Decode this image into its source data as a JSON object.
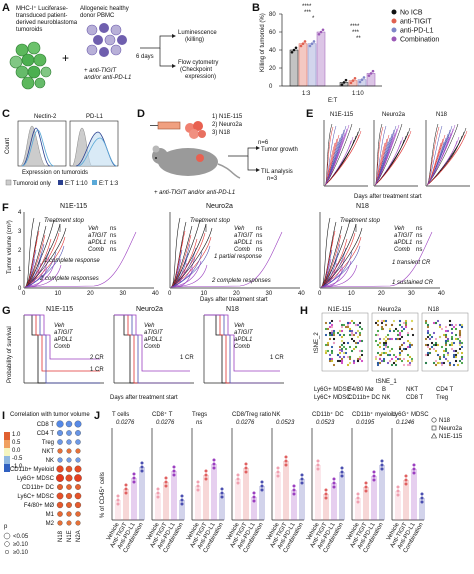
{
  "labels": [
    "A",
    "B",
    "C",
    "D",
    "E",
    "F",
    "G",
    "H",
    "I",
    "J"
  ],
  "panelA": {
    "left_text": "MHC-I+ Luciferase-transduced patient-derived neuroblastoma tumoroids",
    "left_lines": [
      "MHC-I⁺ Luciferase-",
      "transduced patient-",
      "derived neuroblastoma",
      "tumoroids"
    ],
    "right_lines": [
      "Allogeneic healthy",
      "donor PBMC"
    ],
    "treat_lines": [
      "+ anti-TIGIT",
      "and/or anti-PD-L1"
    ],
    "time": "6 days",
    "out1_lines": [
      "Luminescence",
      "(killing)"
    ],
    "out2_lines": [
      "Flow cytometry",
      "(Checkpoint",
      "expression)"
    ],
    "colors": {
      "green": "#5cb85c",
      "purple": "#6f5fae",
      "pbmc": "#b8b0d8"
    }
  },
  "panelB": {
    "ylabel": "Killing of tumoroid (%)",
    "xlabel": "E:T",
    "groups": [
      "1:3",
      "1:10"
    ],
    "legend": [
      "No ICB",
      "anti-TIGIT",
      "anti-PD-L1",
      "Combination"
    ],
    "legend_colors": [
      "#111111",
      "#e06050",
      "#7f86c8",
      "#9b59b6"
    ],
    "sig": [
      "****",
      "***",
      "*",
      "****",
      "***",
      "**"
    ],
    "chart_data": {
      "type": "bar",
      "categories": [
        "1:3",
        "1:10"
      ],
      "series": [
        {
          "name": "No ICB",
          "values": [
            40,
            4
          ]
        },
        {
          "name": "anti-TIGIT",
          "values": [
            47,
            6
          ]
        },
        {
          "name": "anti-PD-L1",
          "values": [
            47,
            7
          ]
        },
        {
          "name": "Combination",
          "values": [
            60,
            14
          ]
        }
      ],
      "ylim": [
        0,
        80
      ]
    }
  },
  "panelC": {
    "titles": [
      "Nectin-2",
      "PD-L1"
    ],
    "xlabel": "Expression on tumoroids",
    "ylabel": "Count",
    "legend": [
      "Tumoroid only",
      "E:T 1:10",
      "E:T 1:3"
    ],
    "legend_colors": [
      "#999999",
      "#2a3f8f",
      "#5aa9d8"
    ]
  },
  "panelD": {
    "lines": [
      "1) N1E-115",
      "2) Neuro2a",
      "3) N18"
    ],
    "n": "n=6",
    "out1": "Tumor growth",
    "out2_lines": [
      "TIL analysis",
      "n=3"
    ],
    "bottom": "+ anti-TIGIT and/or anti-PD-L1"
  },
  "panelE": {
    "titles": [
      "N1E-115",
      "Neuro2a",
      "N18"
    ],
    "xlabel": "Days after treatment start"
  },
  "panelF": {
    "titles": [
      "N1E-115",
      "Neuro2a",
      "N18"
    ],
    "ylabel": "Tumor volume (cm³)",
    "xlabel": "Days after treatment start",
    "stop": "Treatment stop",
    "legend": [
      "Veh",
      "aTIGIT",
      "aPDL1",
      "Comb"
    ],
    "legend_colors": [
      "#111111",
      "#e03030",
      "#4a4fb0",
      "#9b3fc0"
    ],
    "notes": [
      "1 complete response",
      "2 complete responses",
      "1 partial response",
      "2 complete responses",
      "1 transient CR",
      "1 sustained CR"
    ],
    "ns": "ns",
    "yticks": [
      "0",
      "1",
      "2",
      "3",
      "4"
    ],
    "xticks": [
      "0",
      "10",
      "20",
      "30",
      "40"
    ]
  },
  "panelG": {
    "titles": [
      "N1E-115",
      "Neuro2a",
      "N18"
    ],
    "ylabel": "Probability of survival",
    "xlabel": "Days after treatment start",
    "notes": [
      "2 CR",
      "1 CR",
      "1 CR",
      "1 CR"
    ],
    "legend": [
      "Veh",
      "aTIGIT",
      "aPDL1",
      "Comb"
    ]
  },
  "panelH": {
    "titles": [
      "N1E-115",
      "Neuro2a",
      "N18"
    ],
    "xlab": "tSNE_1",
    "ylab": "tSNE_2",
    "legend": [
      {
        "t": "Ly6G+ MDSC",
        "c": "#c8b820"
      },
      {
        "t": "F4/80 Mø",
        "c": "#f0a0c0"
      },
      {
        "t": "B",
        "c": "#a07020"
      },
      {
        "t": "NKT",
        "c": "#111111"
      },
      {
        "t": "CD4 T",
        "c": "#d040c0"
      },
      {
        "t": "Ly6C+ MDSC",
        "c": "#d8d860"
      },
      {
        "t": "CD11b+ DC",
        "c": "#40a040"
      },
      {
        "t": "NK",
        "c": "#2050a0"
      },
      {
        "t": "CD8 T",
        "c": "#208040"
      },
      {
        "t": "Treg",
        "c": "#7050c0"
      }
    ]
  },
  "panelI": {
    "title": "Correlation with tumor volume",
    "rows": [
      "CD8 T",
      "CD4 T",
      "Treg",
      "NKT",
      "NK",
      "CD11b+ Myeloid",
      "Ly6G+ MDSC",
      "CD11b+ DC",
      "Ly6C+ MDSC",
      "F4/80+ MØ",
      "M1",
      "M2"
    ],
    "cols": [
      "N18",
      "N1E",
      "N2A"
    ],
    "scale": [
      "1.0",
      "0.5",
      "0.0",
      "-0.5",
      "-1.0"
    ],
    "plabel": "p",
    "sizes": [
      "<0.05",
      "≥0.10",
      "≥0.10"
    ],
    "rlabel": "r"
  },
  "panelJ": {
    "ylabel": "% of CD45⁺ cells",
    "titles": [
      "T cells",
      "CD8⁺ T",
      "Tregs",
      "CD8/Treg ratio",
      "NK",
      "CD11b⁺ DC",
      "CD11b⁺ myeloid",
      "Ly6G⁺ MDSC"
    ],
    "pvals": [
      "0.0276",
      "0.0276",
      "ns",
      "0.0276",
      "0.0523",
      "0.0523",
      "0.0195",
      "0.1246"
    ],
    "xcats": [
      "Vehicle",
      "Anti-TIGIT",
      "Anti-PD-L1",
      "Combination"
    ],
    "legend": [
      "N18",
      "Neuro2a",
      "N1E-115"
    ]
  }
}
